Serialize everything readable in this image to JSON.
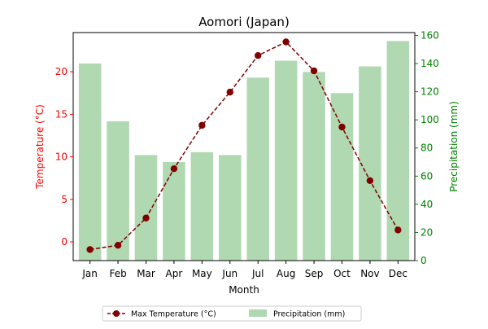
{
  "chart_data": {
    "type": "bar+line",
    "title": "Aomori (Japan)",
    "xlabel": "Month",
    "categories": [
      "Jan",
      "Feb",
      "Mar",
      "Apr",
      "May",
      "Jun",
      "Jul",
      "Aug",
      "Sep",
      "Oct",
      "Nov",
      "Dec"
    ],
    "left_axis": {
      "label": "Temperature (°C)",
      "color": "#ff0000",
      "ylim": [
        -2.2,
        24.6
      ],
      "ticks": [
        0,
        5,
        10,
        15,
        20
      ]
    },
    "right_axis": {
      "label": "Precipitation (mm)",
      "color": "#008000",
      "ylim": [
        0,
        162
      ],
      "ticks": [
        0,
        20,
        40,
        60,
        80,
        100,
        120,
        140,
        160
      ]
    },
    "series": [
      {
        "name": "Max Temperature (°C)",
        "kind": "line",
        "axis": "left",
        "color": "#800000",
        "values": [
          -0.9,
          -0.4,
          2.8,
          8.6,
          13.7,
          17.6,
          21.9,
          23.5,
          20.1,
          13.5,
          7.2,
          1.4
        ]
      },
      {
        "name": "Precipitation (mm)",
        "kind": "bar",
        "axis": "right",
        "color": "#b0d9b1",
        "values": [
          140,
          99,
          75,
          70,
          77,
          75,
          130,
          142,
          134,
          119,
          138,
          156
        ]
      }
    ],
    "legend_position": "bottom-center",
    "grid": false
  }
}
